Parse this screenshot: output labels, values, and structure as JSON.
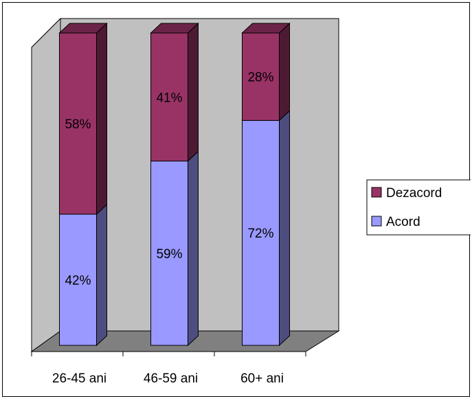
{
  "chart_data": {
    "type": "bar",
    "stacked": true,
    "percent": true,
    "three_d": true,
    "categories": [
      "26-45 ani",
      "46-59 ani",
      "60+ ani"
    ],
    "series": [
      {
        "name": "Acord",
        "values": [
          42,
          59,
          72
        ],
        "labels": [
          "42%",
          "59%",
          "72%"
        ],
        "color": "#9999ff",
        "side_color": "#4d4d80",
        "top_color": "#7070c0"
      },
      {
        "name": "Dezacord",
        "values": [
          58,
          41,
          28
        ],
        "labels": [
          "58%",
          "41%",
          "28%"
        ],
        "color": "#993366",
        "side_color": "#4d1a33",
        "top_color": "#6b2447"
      }
    ],
    "ylim": [
      0,
      100
    ],
    "legend_position": "right",
    "wall_color": "#c0c0c0",
    "floor_color": "#808080",
    "grid": false
  }
}
